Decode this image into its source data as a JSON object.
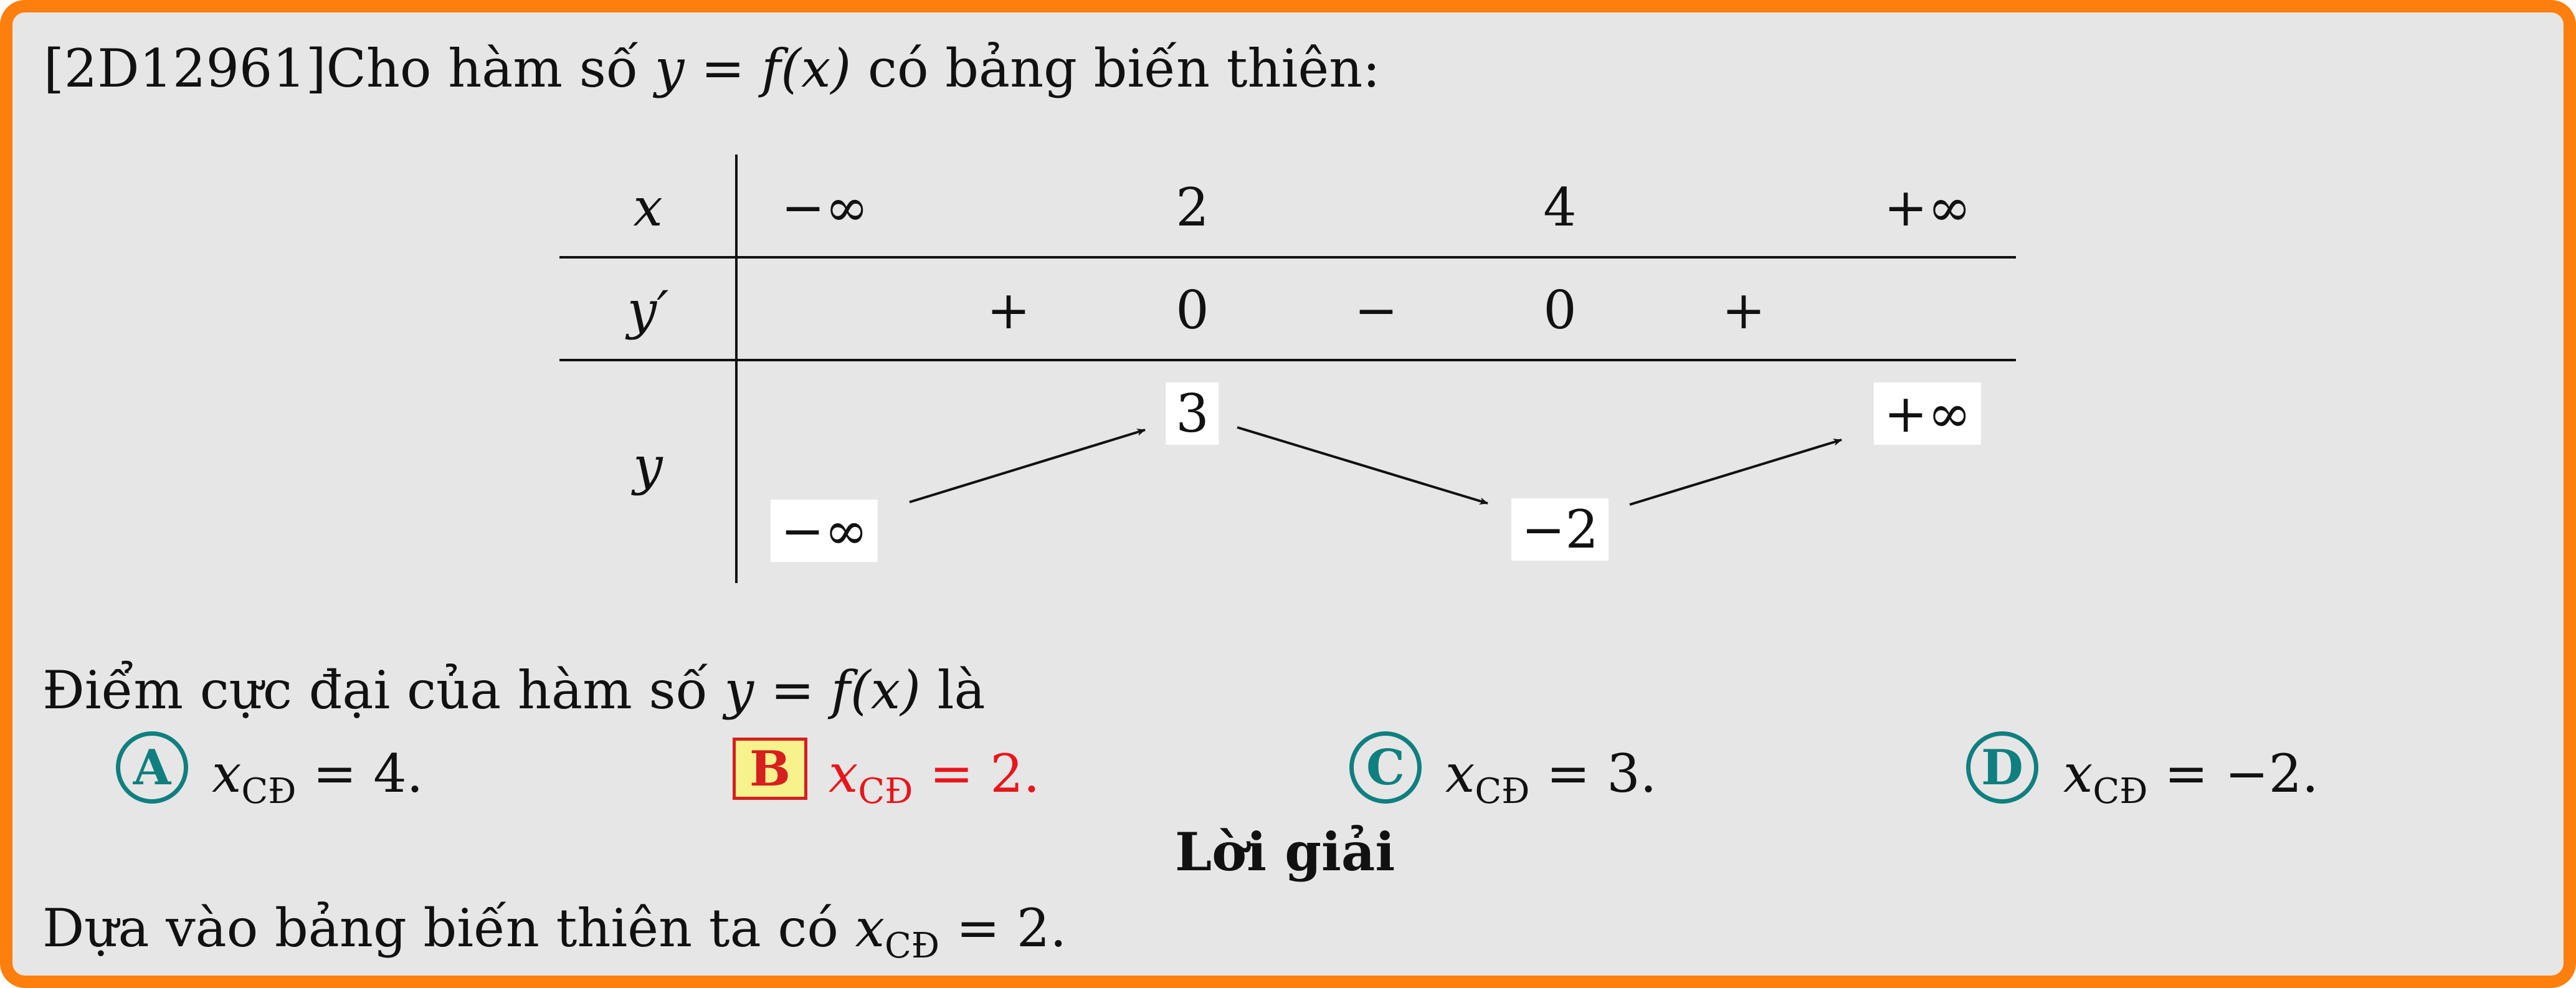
{
  "problem": {
    "id": "[2D12961]",
    "intro": "Cho hàm số ",
    "func": "y = f(x)",
    "intro_tail": " có bảng biến thiên:"
  },
  "table": {
    "row_labels": [
      "x",
      "y′",
      "y"
    ],
    "x_values": [
      "−∞",
      "2",
      "4",
      "+∞"
    ],
    "derivative_signs": [
      "+",
      "0",
      "−",
      "0",
      "+"
    ],
    "y_values": [
      "−∞",
      "3",
      "−2",
      "+∞"
    ]
  },
  "question": {
    "text": "Điểm cực đại của hàm số ",
    "func": "y = f(x)",
    "tail": " là"
  },
  "options": [
    {
      "letter": "A",
      "var": "x",
      "sub": "CĐ",
      "rest": " = 4.",
      "correct": false
    },
    {
      "letter": "B",
      "var": "x",
      "sub": "CĐ",
      "rest": " = 2.",
      "correct": true
    },
    {
      "letter": "C",
      "var": "x",
      "sub": "CĐ",
      "rest": " = 3.",
      "correct": false
    },
    {
      "letter": "D",
      "var": "x",
      "sub": "CĐ",
      "rest": " = −2.",
      "correct": false
    }
  ],
  "solution": {
    "heading": "Lời giải",
    "text": "Dựa vào bảng biến thiên ta có ",
    "var": "x",
    "sub": "CĐ",
    "rest": " = 2."
  },
  "colors": {
    "border": "#ff7f0e",
    "background": "#e6e6e6",
    "option_circle": "#0f7f7f",
    "correct": "#e8161b",
    "correct_fill": "#f7f28c"
  }
}
